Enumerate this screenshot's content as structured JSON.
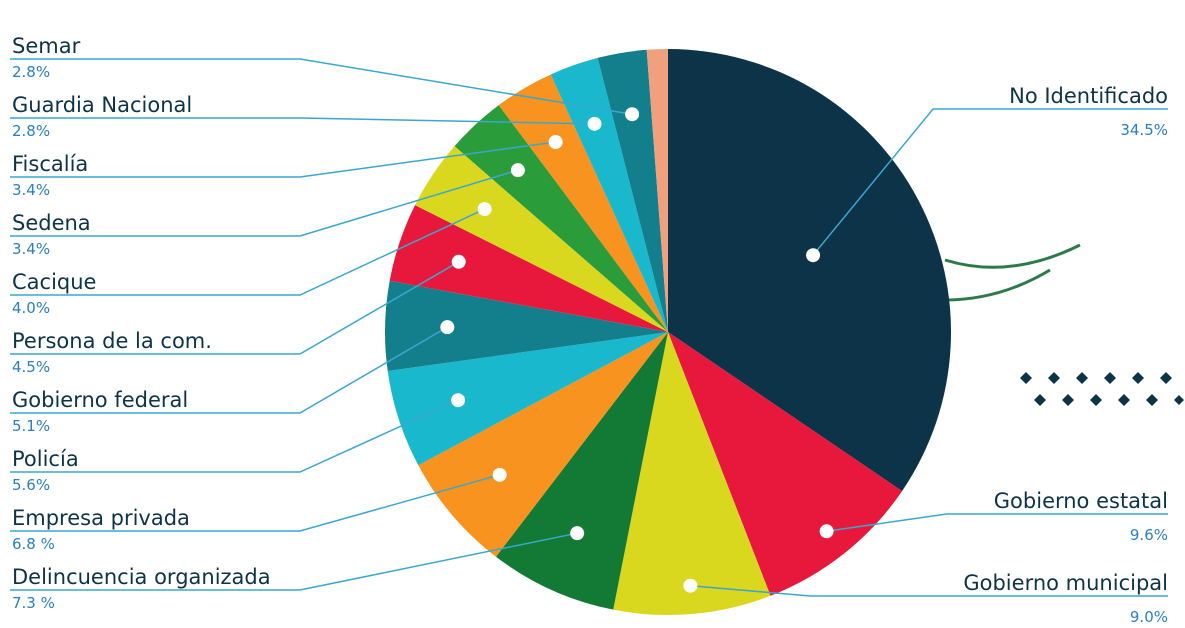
{
  "chart_data": {
    "type": "pie",
    "categories": [
      "No Identificado",
      "Gobierno estatal",
      "Gobierno municipal",
      "Delincuencia organizada",
      "Empresa privada",
      "Policía",
      "Gobierno federal",
      "Persona de la com.",
      "Cacique",
      "Sedena",
      "Fiscalía",
      "Guardia Nacional",
      "Semar",
      null
    ],
    "values": [
      34.5,
      9.6,
      9.0,
      7.3,
      6.8,
      5.6,
      5.1,
      4.5,
      4.0,
      3.4,
      3.4,
      2.8,
      2.8,
      1.2
    ],
    "value_labels": [
      "34.5%",
      "9.6%",
      "9.0%",
      "7.3 %",
      "6.8 %",
      "5.6%",
      "5.1%",
      "4.5%",
      "4.0%",
      "3.4%",
      "3.4%",
      "2.8%",
      "2.8%",
      null
    ],
    "colors": [
      "#0d3349",
      "#e8173c",
      "#d9d81f",
      "#137a36",
      "#f7931e",
      "#19b8cc",
      "#137f8c",
      "#e8173c",
      "#d9d81f",
      "#2a9c3a",
      "#f7931e",
      "#19b8cc",
      "#137f8c",
      "#f0a07c"
    ]
  }
}
